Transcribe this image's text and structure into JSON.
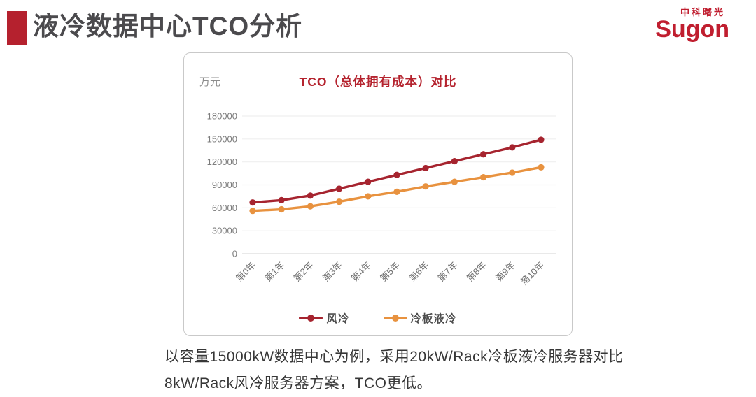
{
  "header": {
    "title": "液冷数据中心TCO分析",
    "logo_chinese": "中科曙光",
    "logo_english": "Sugon"
  },
  "chart": {
    "unit_label": "万元",
    "title": "TCO（总体拥有成本）对比"
  },
  "chart_data": {
    "type": "line",
    "title": "TCO（总体拥有成本）对比",
    "xlabel": "",
    "ylabel": "万元",
    "categories": [
      "第0年",
      "第1年",
      "第2年",
      "第3年",
      "第4年",
      "第5年",
      "第6年",
      "第7年",
      "第8年",
      "第9年",
      "第10年"
    ],
    "series": [
      {
        "name": "风冷",
        "color": "#a6242f",
        "values": [
          67000,
          70000,
          76000,
          85000,
          94000,
          103000,
          112000,
          121000,
          130000,
          139000,
          149000
        ]
      },
      {
        "name": "冷板液冷",
        "color": "#e8923f",
        "values": [
          56000,
          58000,
          62000,
          68000,
          75000,
          81000,
          88000,
          94000,
          100000,
          106000,
          113000
        ]
      }
    ],
    "ylim": [
      0,
      180000
    ],
    "ytick_interval": 30000,
    "grid": true,
    "legend_position": "bottom"
  },
  "caption": {
    "line1": "以容量15000kW数据中心为例，采用20kW/Rack冷板液冷服务器对比",
    "line2": "8kW/Rack风冷服务器方案，TCO更低。"
  },
  "colors": {
    "accent_red": "#b5212e",
    "logo_red": "#c01e2f",
    "chart_title_red": "#b5242f",
    "air_cooling_red": "#a6242f",
    "liquid_cooling_orange": "#e8923f",
    "grid_gray": "#efefef",
    "axis_label_gray": "#7c7c7c"
  }
}
